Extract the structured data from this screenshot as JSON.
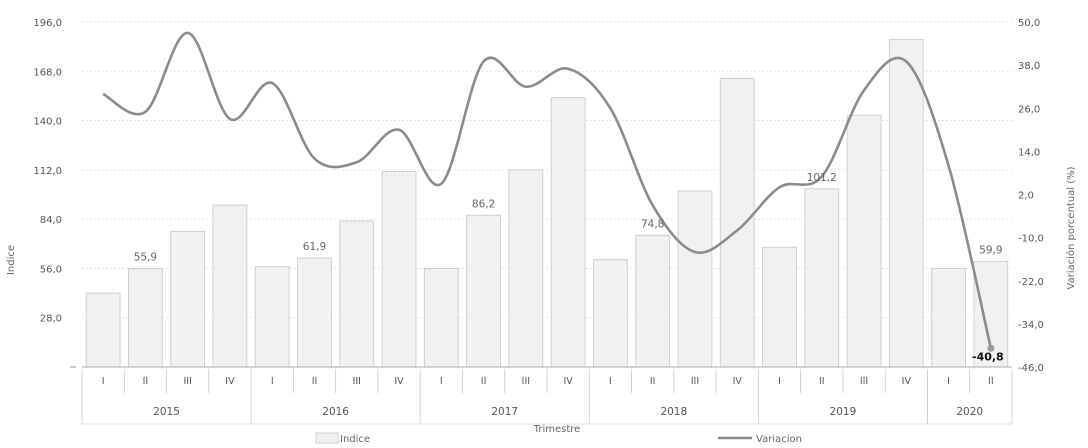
{
  "chart_data": {
    "type": "bar",
    "title": "",
    "xlabel": "Trimestre",
    "ylabel": "Indice",
    "y2label": "Variación porcentual (%)",
    "ylim": [
      0,
      196
    ],
    "y2lim": [
      -46,
      50
    ],
    "yticks": [
      "28,0",
      "56,0",
      "84,0",
      "112,0",
      "140,0",
      "168,0",
      "196,0"
    ],
    "y2ticks": [
      "50,0",
      "38,0",
      "26,0",
      "14,0",
      "2,0",
      "-10,0",
      "-22,0",
      "-34,0",
      "-46,0"
    ],
    "categories": [
      "I",
      "II",
      "III",
      "IV",
      "I",
      "II",
      "III",
      "IV",
      "I",
      "II",
      "III",
      "IV",
      "I",
      "II",
      "III",
      "IV",
      "I",
      "II",
      "III",
      "IV",
      "I",
      "II"
    ],
    "years": [
      {
        "label": "2015",
        "quarters": 4
      },
      {
        "label": "2016",
        "quarters": 4
      },
      {
        "label": "2017",
        "quarters": 4
      },
      {
        "label": "2018",
        "quarters": 4
      },
      {
        "label": "2019",
        "quarters": 4
      },
      {
        "label": "2020",
        "quarters": 2
      }
    ],
    "series": [
      {
        "name": "Indice",
        "kind": "bar",
        "axis": "left",
        "values": [
          42,
          55.9,
          77,
          92,
          57,
          61.9,
          83,
          111,
          56,
          86.2,
          112,
          153,
          61,
          74.8,
          100,
          164,
          68,
          101.2,
          143,
          186,
          56,
          59.9
        ]
      },
      {
        "name": "Variación",
        "kind": "line",
        "axis": "right",
        "values": [
          30,
          25,
          47,
          23,
          33,
          12,
          11,
          20,
          5,
          39,
          32,
          37,
          26,
          -1,
          -14,
          -8,
          4,
          7,
          31,
          39,
          10,
          -40.8
        ]
      }
    ],
    "data_labels": [
      {
        "index": 1,
        "text": "55,9"
      },
      {
        "index": 5,
        "text": "61,9"
      },
      {
        "index": 9,
        "text": "86,2"
      },
      {
        "index": 13,
        "text": "74,8"
      },
      {
        "index": 17,
        "text": "101,2"
      },
      {
        "index": 21,
        "text": "59,9"
      }
    ],
    "line_end_label": "-40,8",
    "legend": [
      "Indice",
      "Variacion"
    ],
    "legend_position": "bottom",
    "colors": {
      "bar_fill": "#f1f1f1",
      "bar_stroke": "#cfcfcf",
      "line": "#8c8c8c",
      "marker": "#9a9a9a",
      "grid": "#dedede"
    }
  }
}
